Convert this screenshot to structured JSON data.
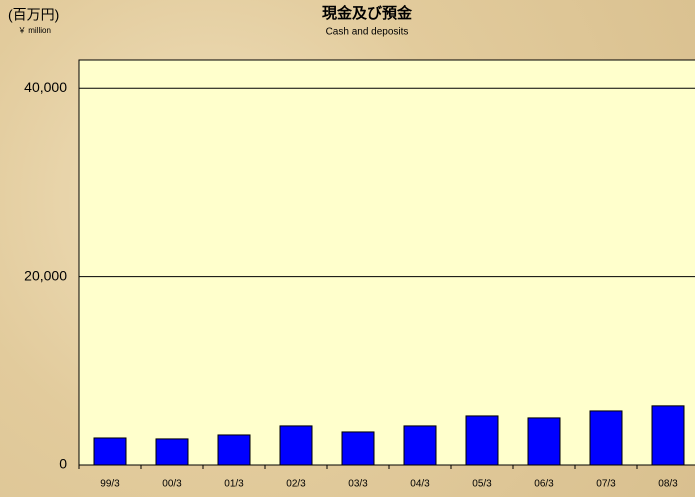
{
  "chart_data": {
    "type": "bar",
    "title": "現金及び預金",
    "subtitle": "Cash and deposits",
    "y_unit": "(百万円)",
    "y_unit_en": "￥ million",
    "categories": [
      "99/3",
      "00/3",
      "01/3",
      "02/3",
      "03/3",
      "04/3",
      "05/3",
      "06/3",
      "07/3",
      "08/3"
    ],
    "values": [
      2870,
      2770,
      3190,
      4150,
      3510,
      4150,
      5210,
      5000,
      5740,
      6280
    ],
    "color": "#0000ff",
    "ylim": [
      0,
      43000
    ],
    "yticks": [
      0,
      {
        "value": 20000,
        "label": "20,000"
      },
      {
        "value": 40000,
        "label": "40,000"
      }
    ],
    "grid": true
  }
}
